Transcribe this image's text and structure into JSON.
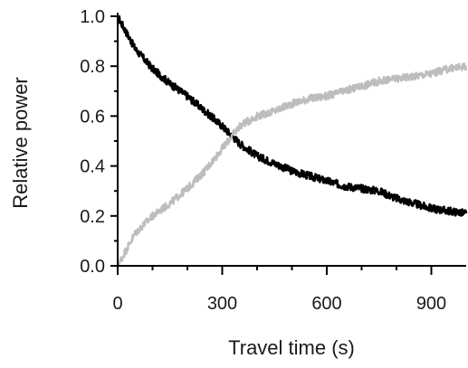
{
  "chart_data": {
    "type": "line",
    "title": "",
    "xlabel": "Travel time (s)",
    "ylabel": "Relative power",
    "xlim": [
      0,
      1000
    ],
    "ylim": [
      0,
      1.0
    ],
    "x_ticks": [
      0,
      300,
      600,
      900
    ],
    "x_tick_labels": [
      "0",
      "300",
      "600",
      "900"
    ],
    "x_minor_ticks": [
      100,
      200,
      400,
      500,
      700,
      800
    ],
    "y_ticks": [
      0,
      0.2,
      0.4,
      0.6,
      0.8,
      1.0
    ],
    "y_tick_labels": [
      "0.0",
      "0.2",
      "0.4",
      "0.6",
      "0.8",
      "1.0"
    ],
    "y_minor_ticks": [
      0.1,
      0.3,
      0.5,
      0.7,
      0.9
    ],
    "grid": false,
    "legend": "none",
    "series": [
      {
        "color": "#000000",
        "x": [
          0,
          50,
          100,
          150,
          200,
          250,
          300,
          350,
          400,
          450,
          500,
          550,
          600,
          650,
          700,
          750,
          800,
          850,
          900,
          950,
          1000
        ],
        "y": [
          1.0,
          0.87,
          0.79,
          0.73,
          0.68,
          0.62,
          0.56,
          0.49,
          0.44,
          0.41,
          0.38,
          0.36,
          0.34,
          0.32,
          0.31,
          0.3,
          0.27,
          0.25,
          0.23,
          0.22,
          0.21
        ]
      },
      {
        "color": "#bdbdbd",
        "x": [
          0,
          50,
          100,
          150,
          200,
          250,
          300,
          350,
          400,
          450,
          500,
          550,
          600,
          650,
          700,
          750,
          800,
          850,
          900,
          950,
          1000
        ],
        "y": [
          0.0,
          0.13,
          0.2,
          0.25,
          0.31,
          0.38,
          0.47,
          0.56,
          0.6,
          0.62,
          0.65,
          0.67,
          0.68,
          0.7,
          0.72,
          0.74,
          0.75,
          0.76,
          0.77,
          0.79,
          0.8
        ]
      }
    ]
  }
}
